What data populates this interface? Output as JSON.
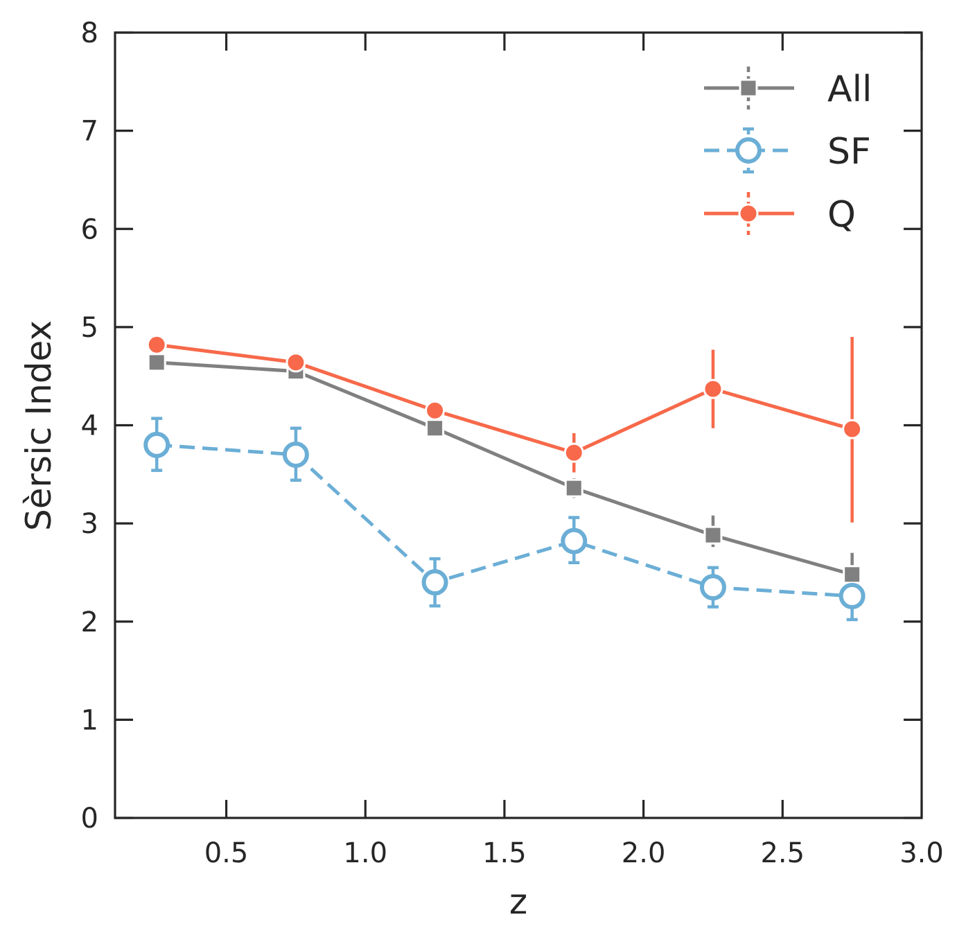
{
  "chart_data": {
    "type": "line",
    "title": "",
    "xlabel": "z",
    "ylabel": "Sèrsic Index",
    "xlim": [
      0.1,
      3.0
    ],
    "ylim": [
      0,
      8
    ],
    "xticks": [
      0.5,
      1.0,
      1.5,
      2.0,
      2.5,
      3.0
    ],
    "xtick_labels": [
      "0.5",
      "1.0",
      "1.5",
      "2.0",
      "2.5",
      "3.0"
    ],
    "yticks": [
      0,
      1,
      2,
      3,
      4,
      5,
      6,
      7,
      8
    ],
    "ytick_labels": [
      "0",
      "1",
      "2",
      "3",
      "4",
      "5",
      "6",
      "7",
      "8"
    ],
    "grid": false,
    "legend_position": "top-right",
    "x": [
      0.25,
      0.75,
      1.25,
      1.75,
      2.25,
      2.75
    ],
    "series": [
      {
        "name": "All",
        "color": "#808080",
        "marker": "square",
        "linestyle": "solid",
        "values": [
          4.64,
          4.55,
          3.97,
          3.36,
          2.88,
          2.48
        ],
        "err_low": [
          0.03,
          0.03,
          0.04,
          0.1,
          0.12,
          0.12
        ],
        "err_high": [
          0.03,
          0.03,
          0.04,
          0.1,
          0.2,
          0.22
        ]
      },
      {
        "name": "SF",
        "color": "#6baed6",
        "marker": "open-circle",
        "linestyle": "dashed",
        "values": [
          3.8,
          3.7,
          2.4,
          2.82,
          2.35,
          2.26
        ],
        "err_low": [
          0.26,
          0.26,
          0.24,
          0.22,
          0.2,
          0.24
        ],
        "err_high": [
          0.27,
          0.27,
          0.24,
          0.24,
          0.2,
          0.24
        ]
      },
      {
        "name": "Q",
        "color": "#f7694a",
        "marker": "filled-circle",
        "linestyle": "solid",
        "values": [
          4.82,
          4.64,
          4.15,
          3.72,
          4.37,
          3.96
        ],
        "err_low": [
          0.03,
          0.03,
          0.05,
          0.2,
          0.4,
          0.95
        ],
        "err_high": [
          0.03,
          0.03,
          0.05,
          0.2,
          0.4,
          0.94
        ]
      }
    ]
  }
}
